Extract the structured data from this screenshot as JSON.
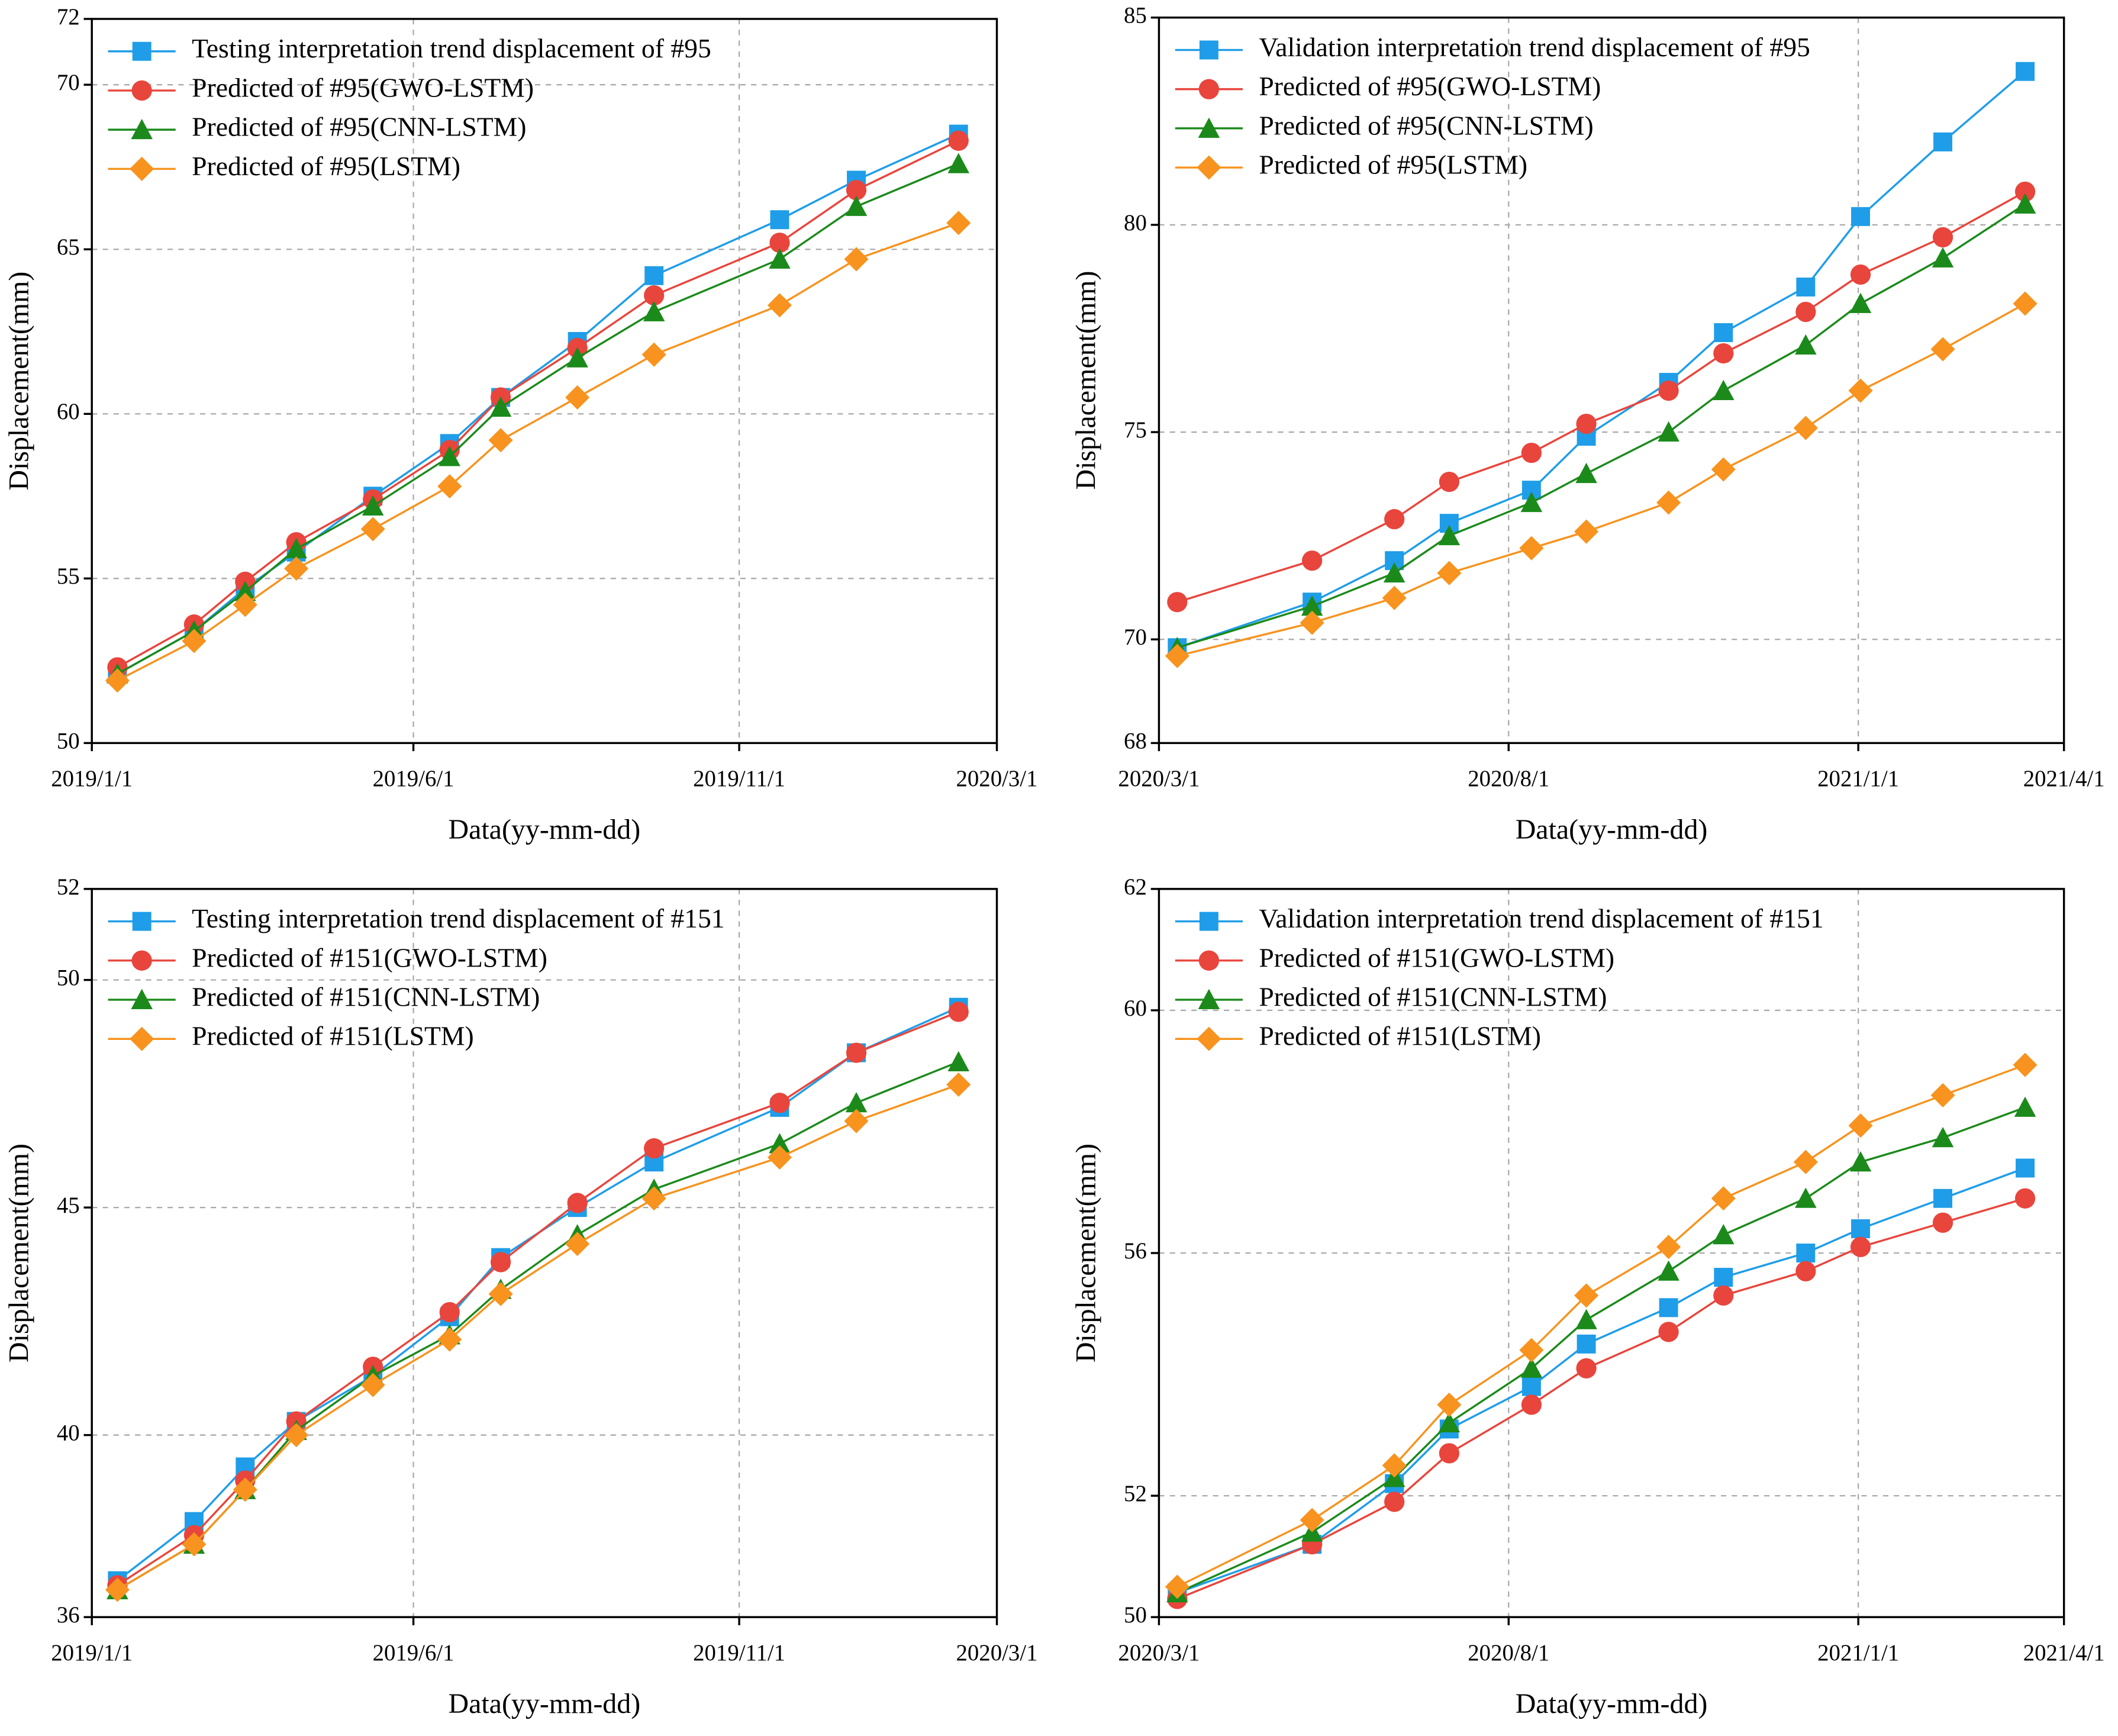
{
  "chart_data": [
    {
      "type": "line",
      "xlabel": "Data(yy-mm-dd)",
      "ylabel": "Displacement(mm)",
      "x": [
        "2019/1/13",
        "2019/2/18",
        "2019/3/14",
        "2019/4/7",
        "2019/5/13",
        "2019/6/18",
        "2019/7/12",
        "2019/8/17",
        "2019/9/22",
        "2019/11/20",
        "2019/12/26",
        "2020/2/12"
      ],
      "xlim": [
        "2019/1/1",
        "2020/3/1"
      ],
      "xticks": [
        "2019/1/1",
        "2019/6/1",
        "2019/11/1",
        "2020/3/1"
      ],
      "ylim": [
        50,
        72
      ],
      "yticks": [
        50,
        55,
        60,
        65,
        70,
        72
      ],
      "grid": true,
      "legend": "upper left",
      "series": [
        {
          "name": "Testing interpretation trend displacement of #95",
          "color": "#1f9de8",
          "marker": "square",
          "values": [
            52.1,
            53.4,
            54.7,
            55.8,
            57.5,
            59.1,
            60.5,
            62.2,
            64.2,
            65.9,
            67.1,
            68.5
          ]
        },
        {
          "name": "Predicted of  #95(GWO-LSTM)",
          "color": "#e8453c",
          "marker": "circle",
          "values": [
            52.3,
            53.6,
            54.9,
            56.1,
            57.4,
            58.9,
            60.5,
            62.0,
            63.6,
            65.2,
            66.8,
            68.3
          ]
        },
        {
          "name": "Predicted of  #95(CNN-LSTM)",
          "color": "#1b8a1b",
          "marker": "triangle",
          "values": [
            52.1,
            53.4,
            54.6,
            55.9,
            57.2,
            58.7,
            60.2,
            61.7,
            63.1,
            64.7,
            66.3,
            67.6
          ]
        },
        {
          "name": "Predicted of  #95(LSTM)",
          "color": "#f7931e",
          "marker": "diamond",
          "values": [
            51.9,
            53.1,
            54.2,
            55.3,
            56.5,
            57.8,
            59.2,
            60.5,
            61.8,
            63.3,
            64.7,
            65.8
          ]
        }
      ]
    },
    {
      "type": "line",
      "xlabel": "Data(yy-mm-dd)",
      "ylabel": "Displacement(mm)",
      "x": [
        "2020/3/9",
        "2020/5/7",
        "2020/6/12",
        "2020/7/6",
        "2020/8/11",
        "2020/9/4",
        "2020/10/10",
        "2020/11/3",
        "2020/12/9",
        "2021/1/2",
        "2021/2/7",
        "2021/3/15"
      ],
      "xlim": [
        "2020/3/1",
        "2021/4/1"
      ],
      "xticks": [
        "2020/3/1",
        "2020/8/1",
        "2021/1/1",
        "2021/4/1"
      ],
      "ylim": [
        67.5,
        85
      ],
      "yticks": [
        {
          "value": 67.5,
          "label": "68"
        },
        70,
        75,
        80,
        85
      ],
      "grid": true,
      "legend": "upper left",
      "series": [
        {
          "name": "Validation interpretation trend displacement of #95",
          "color": "#1f9de8",
          "marker": "square",
          "values": [
            69.8,
            70.9,
            71.9,
            72.8,
            73.6,
            74.9,
            76.2,
            77.4,
            78.5,
            80.2,
            82.0,
            83.7
          ]
        },
        {
          "name": "Predicted of  #95(GWO-LSTM)",
          "color": "#e8453c",
          "marker": "circle",
          "values": [
            70.9,
            71.9,
            72.9,
            73.8,
            74.5,
            75.2,
            76.0,
            76.9,
            77.9,
            78.8,
            79.7,
            80.8
          ]
        },
        {
          "name": "Predicted of  #95(CNN-LSTM)",
          "color": "#1b8a1b",
          "marker": "triangle",
          "values": [
            69.8,
            70.8,
            71.6,
            72.5,
            73.3,
            74.0,
            75.0,
            76.0,
            77.1,
            78.1,
            79.2,
            80.5
          ]
        },
        {
          "name": "Predicted of  #95(LSTM)",
          "color": "#f7931e",
          "marker": "diamond",
          "values": [
            69.6,
            70.4,
            71.0,
            71.6,
            72.2,
            72.6,
            73.3,
            74.1,
            75.1,
            76.0,
            77.0,
            78.1
          ]
        }
      ]
    },
    {
      "type": "line",
      "xlabel": "Data(yy-mm-dd)",
      "ylabel": "Displacement(mm)",
      "x": [
        "2019/1/13",
        "2019/2/18",
        "2019/3/14",
        "2019/4/7",
        "2019/5/13",
        "2019/6/18",
        "2019/7/12",
        "2019/8/17",
        "2019/9/22",
        "2019/11/20",
        "2019/12/26",
        "2020/2/12"
      ],
      "xlim": [
        "2019/1/1",
        "2020/3/1"
      ],
      "xticks": [
        "2019/1/1",
        "2019/6/1",
        "2019/11/1",
        "2020/3/1"
      ],
      "ylim": [
        36,
        52
      ],
      "yticks": [
        36,
        40,
        45,
        50,
        52
      ],
      "grid": true,
      "legend": "upper left",
      "series": [
        {
          "name": "Testing interpretation trend displacement of #151",
          "color": "#1f9de8",
          "marker": "square",
          "values": [
            36.8,
            38.1,
            39.3,
            40.3,
            41.3,
            42.6,
            43.9,
            45.0,
            46.0,
            47.2,
            48.4,
            49.4
          ]
        },
        {
          "name": "Predicted of  #151(GWO-LSTM)",
          "color": "#e8453c",
          "marker": "circle",
          "values": [
            36.7,
            37.8,
            39.0,
            40.3,
            41.5,
            42.7,
            43.8,
            45.1,
            46.3,
            47.3,
            48.4,
            49.3
          ]
        },
        {
          "name": "Predicted of  #151(CNN-LSTM)",
          "color": "#1b8a1b",
          "marker": "triangle",
          "values": [
            36.6,
            37.6,
            38.8,
            40.1,
            41.3,
            42.2,
            43.2,
            44.4,
            45.4,
            46.4,
            47.3,
            48.2
          ]
        },
        {
          "name": "Predicted of  #151(LSTM)",
          "color": "#f7931e",
          "marker": "diamond",
          "values": [
            36.6,
            37.6,
            38.8,
            40.0,
            41.1,
            42.1,
            43.1,
            44.2,
            45.2,
            46.1,
            46.9,
            47.7
          ]
        }
      ]
    },
    {
      "type": "line",
      "xlabel": "Data(yy-mm-dd)",
      "ylabel": "Displacement(mm)",
      "x": [
        "2020/3/9",
        "2020/5/7",
        "2020/6/12",
        "2020/7/6",
        "2020/8/11",
        "2020/9/4",
        "2020/10/10",
        "2020/11/3",
        "2020/12/9",
        "2021/1/2",
        "2021/2/7",
        "2021/3/15"
      ],
      "xlim": [
        "2020/3/1",
        "2021/4/1"
      ],
      "xticks": [
        "2020/3/1",
        "2020/8/1",
        "2021/1/1",
        "2021/4/1"
      ],
      "ylim": [
        50,
        62
      ],
      "yticks": [
        50,
        52,
        56,
        60,
        62
      ],
      "grid": true,
      "legend": "upper left",
      "series": [
        {
          "name": "Validation interpretation trend displacement of #151",
          "color": "#1f9de8",
          "marker": "square",
          "values": [
            50.4,
            51.2,
            52.2,
            53.1,
            53.8,
            54.5,
            55.1,
            55.6,
            56.0,
            56.4,
            56.9,
            57.4
          ]
        },
        {
          "name": "Predicted of  #151(GWO-LSTM)",
          "color": "#e8453c",
          "marker": "circle",
          "values": [
            50.3,
            51.2,
            51.9,
            52.7,
            53.5,
            54.1,
            54.7,
            55.3,
            55.7,
            56.1,
            56.5,
            56.9
          ]
        },
        {
          "name": "Predicted of  #151(CNN-LSTM)",
          "color": "#1b8a1b",
          "marker": "triangle",
          "values": [
            50.4,
            51.4,
            52.3,
            53.2,
            54.1,
            54.9,
            55.7,
            56.3,
            56.9,
            57.5,
            57.9,
            58.4
          ]
        },
        {
          "name": "Predicted of  #151(LSTM)",
          "color": "#f7931e",
          "marker": "diamond",
          "values": [
            50.5,
            51.6,
            52.5,
            53.5,
            54.4,
            55.3,
            56.1,
            56.9,
            57.5,
            58.1,
            58.6,
            59.1
          ]
        }
      ]
    }
  ]
}
